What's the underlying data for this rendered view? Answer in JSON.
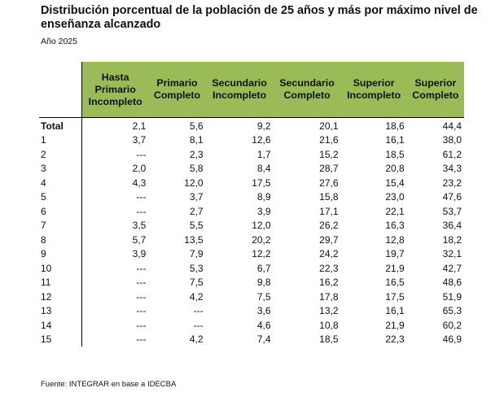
{
  "title": "Distribución porcentual de la población de 25 años y más por máximo nivel de enseñanza alcanzado",
  "subtitle": "Año 2025",
  "table": {
    "headers": [
      [
        "Hasta",
        "Primario",
        "Incompleto"
      ],
      [
        "Primario",
        "Completo"
      ],
      [
        "Secundario",
        "Incompleto"
      ],
      [
        "Secundario",
        "Completo"
      ],
      [
        "Superior",
        "Incompleto"
      ],
      [
        "Superior",
        "Completo"
      ]
    ],
    "rows": [
      {
        "label": "Total",
        "values": [
          "2,1",
          "5,6",
          "9,2",
          "20,1",
          "18,6",
          "44,4"
        ]
      },
      {
        "label": "1",
        "values": [
          "3,7",
          "8,1",
          "12,6",
          "21,6",
          "16,1",
          "38,0"
        ]
      },
      {
        "label": "2",
        "values": [
          "---",
          "2,3",
          "1,7",
          "15,2",
          "18,5",
          "61,2"
        ]
      },
      {
        "label": "3",
        "values": [
          "2,0",
          "5,8",
          "8,4",
          "28,7",
          "20,8",
          "34,3"
        ]
      },
      {
        "label": "4",
        "values": [
          "4,3",
          "12,0",
          "17,5",
          "27,6",
          "15,4",
          "23,2"
        ]
      },
      {
        "label": "5",
        "values": [
          "---",
          "3,7",
          "8,9",
          "15,8",
          "23,0",
          "47,6"
        ]
      },
      {
        "label": "6",
        "values": [
          "---",
          "2,7",
          "3,9",
          "17,1",
          "22,1",
          "53,7"
        ]
      },
      {
        "label": "7",
        "values": [
          "3,5",
          "5,5",
          "12,0",
          "26,2",
          "16,3",
          "36,4"
        ]
      },
      {
        "label": "8",
        "values": [
          "5,7",
          "13,5",
          "20,2",
          "29,7",
          "12,8",
          "18,2"
        ]
      },
      {
        "label": "9",
        "values": [
          "3,9",
          "7,9",
          "12,2",
          "24,2",
          "19,7",
          "32,1"
        ]
      },
      {
        "label": "10",
        "values": [
          "---",
          "5,3",
          "6,7",
          "22,3",
          "21,9",
          "42,7"
        ]
      },
      {
        "label": "11",
        "values": [
          "---",
          "7,5",
          "9,8",
          "16,2",
          "16,5",
          "48,6"
        ]
      },
      {
        "label": "12",
        "values": [
          "---",
          "4,2",
          "7,5",
          "17,8",
          "17,5",
          "51,9"
        ]
      },
      {
        "label": "13",
        "values": [
          "---",
          "---",
          "3,6",
          "13,2",
          "16,1",
          "65,3"
        ]
      },
      {
        "label": "14",
        "values": [
          "---",
          "---",
          "4,6",
          "10,8",
          "21,9",
          "60,2"
        ]
      },
      {
        "label": "15",
        "values": [
          "---",
          "4,2",
          "7,4",
          "18,5",
          "22,3",
          "46,9"
        ]
      }
    ]
  },
  "source": "Fuente: INTEGRAR en base a IDECBA",
  "colors": {
    "header_bg": "#9bbb59"
  }
}
